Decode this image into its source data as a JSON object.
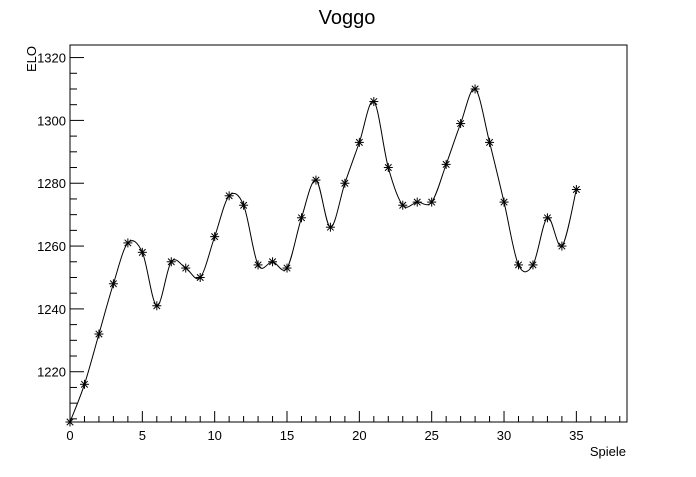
{
  "chart_data": {
    "type": "line",
    "title": "Voggo",
    "xlabel": "Spiele",
    "ylabel": "ELO",
    "xlim": [
      0,
      38.5
    ],
    "ylim": [
      1204,
      1324
    ],
    "x_ticks": [
      0,
      5,
      10,
      15,
      20,
      25,
      30,
      35
    ],
    "y_ticks": [
      1220,
      1240,
      1260,
      1280,
      1300,
      1320
    ],
    "grid": false,
    "marker": "asterisk",
    "line": "smooth",
    "series": [
      {
        "x": [
          0,
          1,
          2,
          3,
          4,
          5,
          6,
          7,
          8,
          9,
          10,
          11,
          12,
          13,
          14,
          15,
          16,
          17,
          18,
          19,
          20,
          21,
          22,
          23,
          24,
          25,
          26,
          27,
          28,
          29,
          30,
          31,
          32,
          33,
          34,
          35
        ],
        "values": [
          1204,
          1216,
          1232,
          1248,
          1261,
          1258,
          1241,
          1255,
          1253,
          1250,
          1263,
          1276,
          1273,
          1254,
          1255,
          1253,
          1269,
          1281,
          1266,
          1280,
          1293,
          1306,
          1285,
          1273,
          1274,
          1274,
          1286,
          1299,
          1310,
          1293,
          1274,
          1254,
          1254,
          1269,
          1260,
          1278
        ]
      }
    ]
  },
  "colors": {
    "line": "#000000",
    "marker": "#000000",
    "background": "#ffffff"
  }
}
